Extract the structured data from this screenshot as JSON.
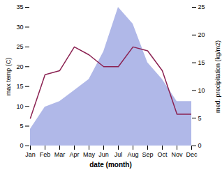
{
  "chart_data": {
    "type": "line",
    "categories": [
      "Jan",
      "Feb",
      "Mar",
      "Apr",
      "May",
      "Jun",
      "Jul",
      "Aug",
      "Sep",
      "Oct",
      "Nov",
      "Dec"
    ],
    "xlabel": "date (month)",
    "ylabel": "max temp (C)",
    "y2label": "med. precipitation (kg/m2)",
    "series": [
      {
        "type": "area",
        "axis": "y2",
        "color": "#b0b8e8",
        "values": [
          3,
          7,
          8,
          10,
          12,
          17,
          25,
          22,
          15,
          12,
          8,
          8
        ]
      },
      {
        "type": "line",
        "color": "#8b2252",
        "values": [
          7,
          18,
          19,
          25,
          23,
          20,
          20,
          25,
          24,
          19,
          8,
          8
        ]
      }
    ],
    "ylim": [
      0,
      35
    ],
    "yticks": [
      0,
      5,
      10,
      15,
      20,
      25,
      30,
      35
    ],
    "y2lim": [
      0,
      25
    ],
    "y2ticks": [
      0,
      5,
      10,
      15,
      20,
      25
    ],
    "grid": false
  }
}
